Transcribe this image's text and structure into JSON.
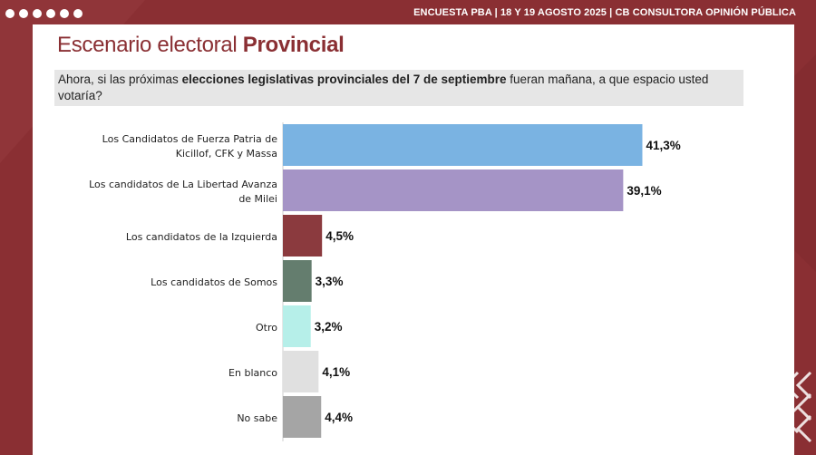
{
  "header": {
    "text": "ENCUESTA PBA | 18 Y 19  AGOSTO 2025 | CB CONSULTORA OPINIÓN PÚBLICA"
  },
  "title": {
    "prefix": "Escenario electoral ",
    "bold": "Provincial"
  },
  "question": {
    "part1": "Ahora, si las próximas ",
    "bold": "elecciones legislativas provinciales del 7 de septiembre",
    "part2": " fueran mañana, a que espacio usted votaría?"
  },
  "colors": {
    "background": "#8a2f33",
    "title": "#8a2f33"
  },
  "chart_data": {
    "type": "bar",
    "orientation": "horizontal",
    "categories": [
      [
        "Los Candidatos de Fuerza Patria de",
        "Kicillof, CFK y Massa"
      ],
      [
        "Los candidatos de La Libertad Avanza",
        "de Milei"
      ],
      [
        "Los candidatos de la Izquierda"
      ],
      [
        "Los candidatos de Somos"
      ],
      [
        "Otro"
      ],
      [
        "En blanco"
      ],
      [
        "No sabe"
      ]
    ],
    "values": [
      41.3,
      39.1,
      4.5,
      3.3,
      3.2,
      4.1,
      4.4
    ],
    "value_labels": [
      "41,3%",
      "39,1%",
      "4,5%",
      "3,3%",
      "3,2%",
      "4,1%",
      "4,4%"
    ],
    "bar_colors": [
      "#7ab3e2",
      "#a594c6",
      "#8b3a3e",
      "#647d6e",
      "#b6efe9",
      "#e0e0e0",
      "#a5a5a5"
    ],
    "xlim": [
      0,
      45
    ],
    "grid": false,
    "legend": "none"
  }
}
